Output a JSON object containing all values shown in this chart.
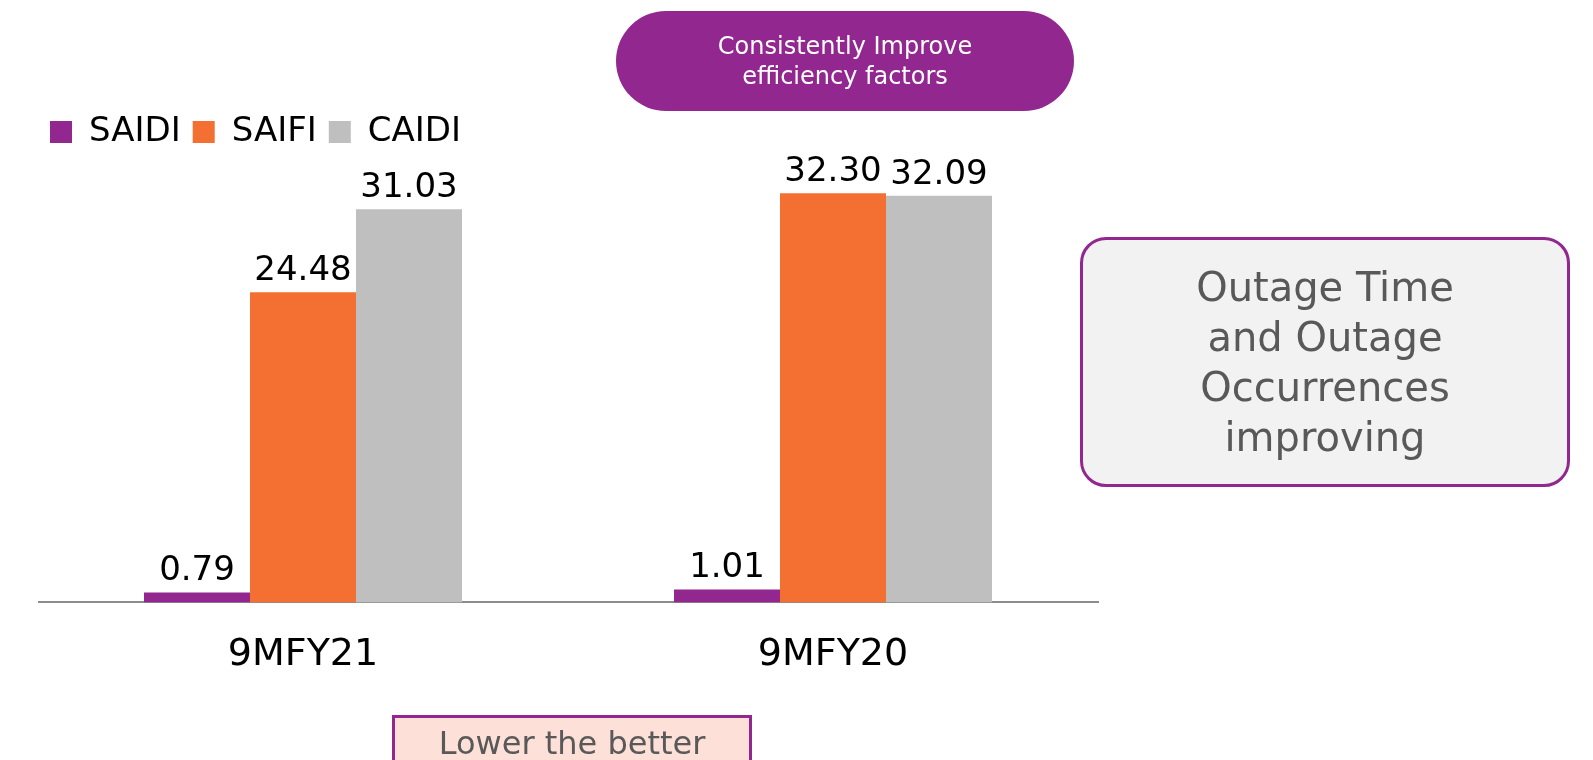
{
  "chart_data": {
    "type": "bar",
    "categories": [
      "9MFY21",
      "9MFY20"
    ],
    "series": [
      {
        "name": "SAIDI",
        "color": "#92278f",
        "values": [
          0.79,
          1.01
        ],
        "value_labels": [
          "0.79",
          "1.01"
        ]
      },
      {
        "name": "SAIFI",
        "color": "#f37032",
        "values": [
          24.48,
          32.3
        ],
        "value_labels": [
          "24.48",
          "32.30"
        ]
      },
      {
        "name": "CAIDI",
        "color": "#bfbfbf",
        "values": [
          31.03,
          32.09
        ],
        "value_labels": [
          "31.03",
          "32.09"
        ]
      }
    ],
    "legend": "top left",
    "grid": false,
    "tick_labels": "x",
    "annotations": [
      "Consistently Improve efficiency factors",
      "Outage Time and Outage Occurrences improving",
      "Lower the better"
    ]
  }
}
